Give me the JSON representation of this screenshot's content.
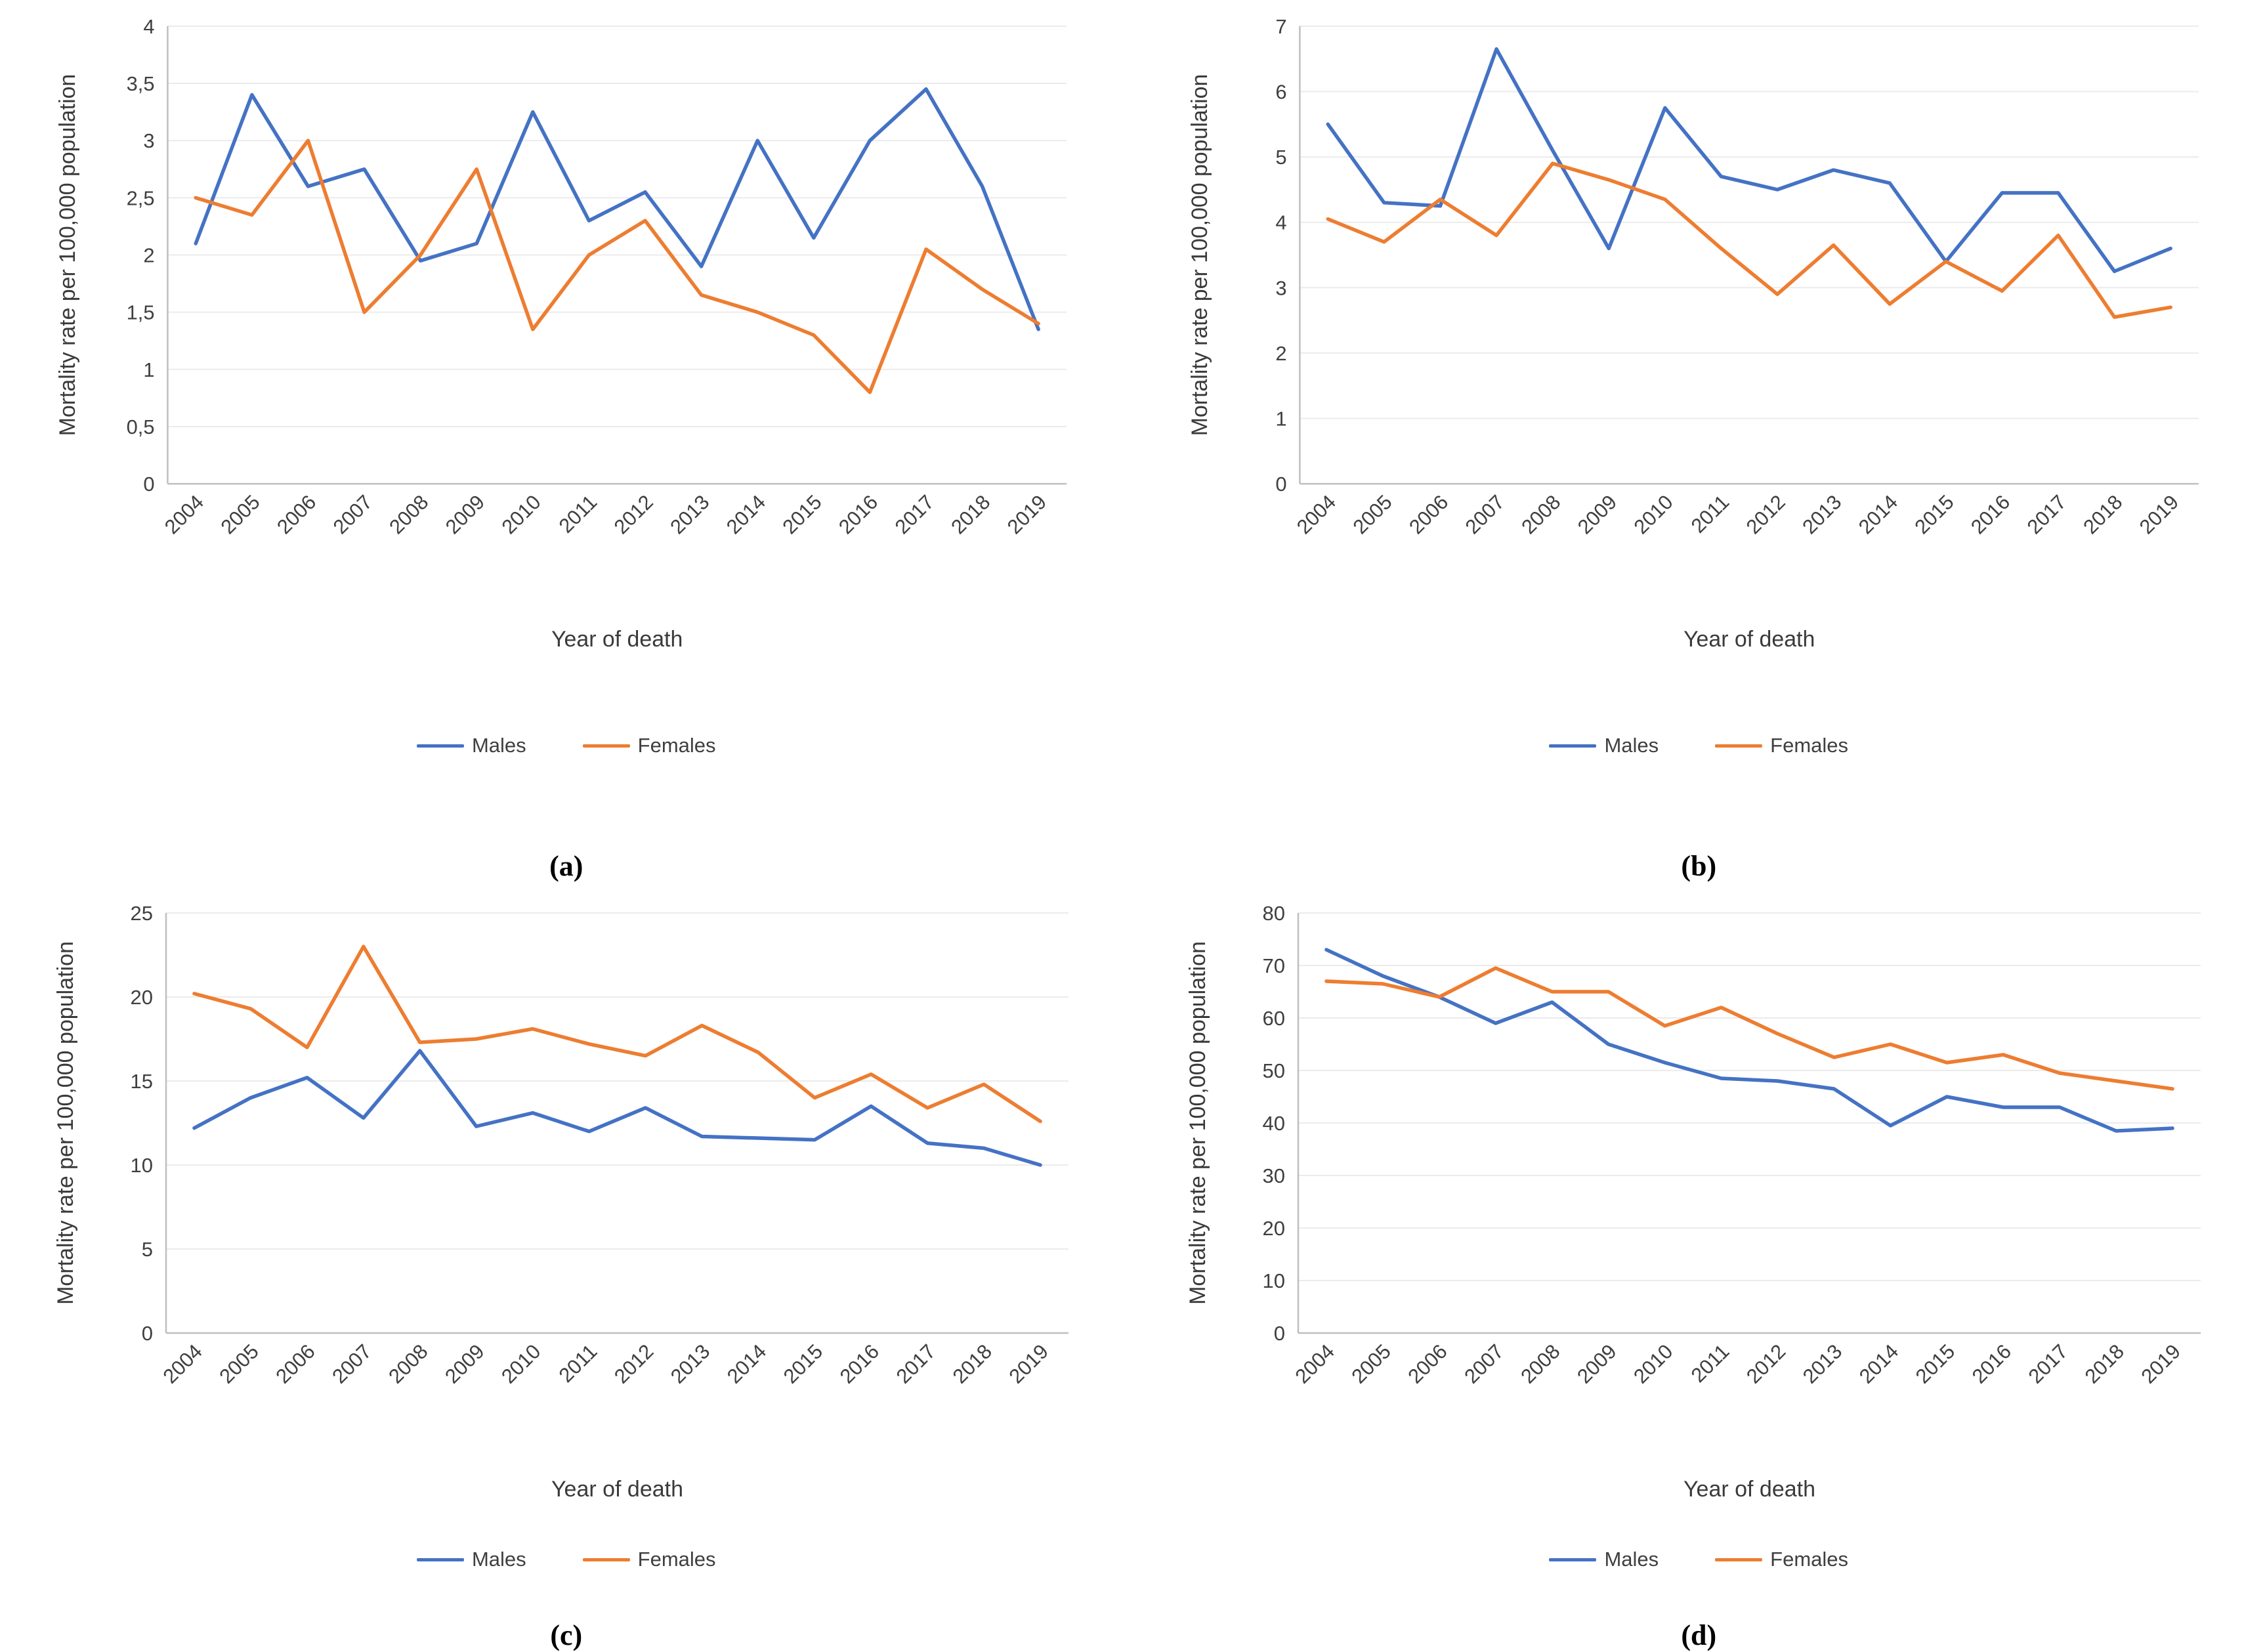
{
  "figure": {
    "panel_count": 4,
    "colors": {
      "males": "#4472C4",
      "females": "#ED7D31"
    }
  },
  "chart_data": [
    {
      "type": "line",
      "caption": "(a)",
      "xlabel": "Year of death",
      "ylabel": "Mortality rate per 100,000 population",
      "categories": [
        "2004",
        "2005",
        "2006",
        "2007",
        "2008",
        "2009",
        "2010",
        "2011",
        "2012",
        "2013",
        "2014",
        "2015",
        "2016",
        "2017",
        "2018",
        "2019"
      ],
      "ylim": [
        0,
        4
      ],
      "yticks": [
        0,
        0.5,
        1,
        1.5,
        2,
        2.5,
        3,
        3.5,
        4
      ],
      "ytick_labels": [
        "0",
        "0,5",
        "1",
        "1,5",
        "2",
        "2,5",
        "3",
        "3,5",
        "4"
      ],
      "grid": true,
      "legend_position": "bottom",
      "series": [
        {
          "name": "Males",
          "color": "#4472C4",
          "values": [
            2.1,
            3.4,
            2.6,
            2.75,
            1.95,
            2.1,
            3.25,
            2.3,
            2.55,
            1.9,
            3.0,
            2.15,
            3.0,
            3.45,
            2.6,
            1.35
          ]
        },
        {
          "name": "Females",
          "color": "#ED7D31",
          "values": [
            2.5,
            2.35,
            3.0,
            1.5,
            2.0,
            2.75,
            1.35,
            2.0,
            2.3,
            1.65,
            1.5,
            1.3,
            0.8,
            2.05,
            1.7,
            1.4
          ]
        }
      ]
    },
    {
      "type": "line",
      "caption": "(b)",
      "xlabel": "Year of death",
      "ylabel": "Mortality rate per 100,000 population",
      "categories": [
        "2004",
        "2005",
        "2006",
        "2007",
        "2008",
        "2009",
        "2010",
        "2011",
        "2012",
        "2013",
        "2014",
        "2015",
        "2016",
        "2017",
        "2018",
        "2019"
      ],
      "ylim": [
        0,
        7
      ],
      "yticks": [
        0,
        1,
        2,
        3,
        4,
        5,
        6,
        7
      ],
      "ytick_labels": [
        "0",
        "1",
        "2",
        "3",
        "4",
        "5",
        "6",
        "7"
      ],
      "grid": true,
      "legend_position": "bottom",
      "series": [
        {
          "name": "Males",
          "color": "#4472C4",
          "values": [
            5.5,
            4.3,
            4.25,
            6.65,
            5.1,
            3.6,
            5.75,
            4.7,
            4.5,
            4.8,
            4.6,
            3.4,
            4.45,
            4.45,
            3.25,
            3.6
          ]
        },
        {
          "name": "Females",
          "color": "#ED7D31",
          "values": [
            4.05,
            3.7,
            4.35,
            3.8,
            4.9,
            4.65,
            4.35,
            3.6,
            2.9,
            3.65,
            2.75,
            3.4,
            2.95,
            3.8,
            2.55,
            2.7
          ]
        }
      ]
    },
    {
      "type": "line",
      "caption": "(c)",
      "xlabel": "Year of death",
      "ylabel": "Mortality rate per 100,000 population",
      "categories": [
        "2004",
        "2005",
        "2006",
        "2007",
        "2008",
        "2009",
        "2010",
        "2011",
        "2012",
        "2013",
        "2014",
        "2015",
        "2016",
        "2017",
        "2018",
        "2019"
      ],
      "ylim": [
        0,
        25
      ],
      "yticks": [
        0,
        5,
        10,
        15,
        20,
        25
      ],
      "ytick_labels": [
        "0",
        "5",
        "10",
        "15",
        "20",
        "25"
      ],
      "grid": true,
      "legend_position": "bottom",
      "series": [
        {
          "name": "Males",
          "color": "#4472C4",
          "values": [
            12.2,
            14.0,
            15.2,
            12.8,
            16.8,
            12.3,
            13.1,
            12.0,
            13.4,
            11.7,
            11.6,
            11.5,
            13.5,
            11.3,
            11.0,
            10.0
          ]
        },
        {
          "name": "Females",
          "color": "#ED7D31",
          "values": [
            20.2,
            19.3,
            17.0,
            23.0,
            17.3,
            17.5,
            18.1,
            17.2,
            16.5,
            18.3,
            16.7,
            14.0,
            15.4,
            13.4,
            14.8,
            12.6
          ]
        }
      ]
    },
    {
      "type": "line",
      "caption": "(d)",
      "xlabel": "Year of death",
      "ylabel": "Mortality rate per 100,000 population",
      "categories": [
        "2004",
        "2005",
        "2006",
        "2007",
        "2008",
        "2009",
        "2010",
        "2011",
        "2012",
        "2013",
        "2014",
        "2015",
        "2016",
        "2017",
        "2018",
        "2019"
      ],
      "ylim": [
        0,
        80
      ],
      "yticks": [
        0,
        10,
        20,
        30,
        40,
        50,
        60,
        70,
        80
      ],
      "ytick_labels": [
        "0",
        "10",
        "20",
        "30",
        "40",
        "50",
        "60",
        "70",
        "80"
      ],
      "grid": true,
      "legend_position": "bottom",
      "series": [
        {
          "name": "Males",
          "color": "#4472C4",
          "values": [
            73,
            68,
            64,
            59,
            63,
            55,
            51.5,
            48.5,
            48,
            46.5,
            39.5,
            45,
            43,
            43,
            38.5,
            39
          ]
        },
        {
          "name": "Females",
          "color": "#ED7D31",
          "values": [
            67,
            66.5,
            64,
            69.5,
            65,
            65,
            58.5,
            62,
            57,
            52.5,
            55,
            51.5,
            53,
            49.5,
            48,
            46.5
          ]
        }
      ]
    }
  ]
}
